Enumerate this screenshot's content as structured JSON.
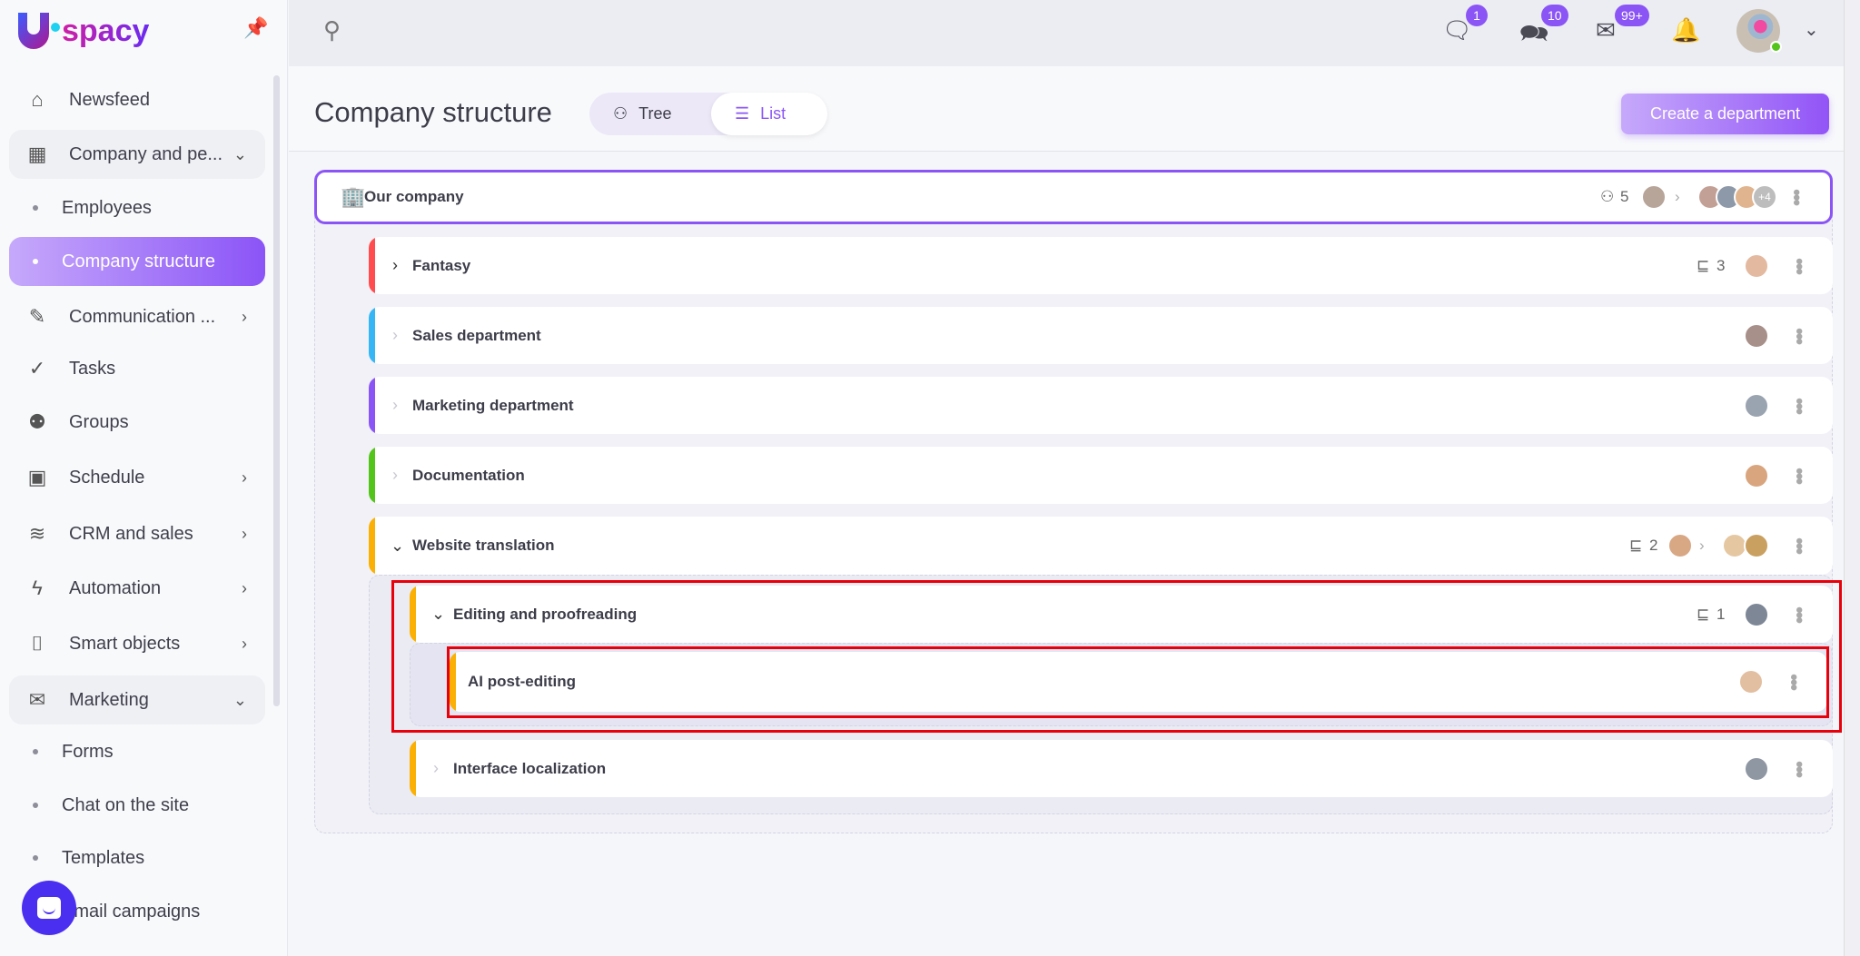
{
  "sidebar": {
    "logo": "spacy",
    "items": [
      {
        "label": "Newsfeed",
        "icon": "home-icon"
      },
      {
        "label": "Company and pe...",
        "icon": "building-icon",
        "expanded": true
      },
      {
        "label": "Employees",
        "sub": true
      },
      {
        "label": "Company structure",
        "sub": true,
        "active": true
      },
      {
        "label": "Communication ...",
        "icon": "communication-icon",
        "chevron": true
      },
      {
        "label": "Tasks",
        "icon": "tasks-icon"
      },
      {
        "label": "Groups",
        "icon": "groups-icon"
      },
      {
        "label": "Schedule",
        "icon": "calendar-icon",
        "chevron": true
      },
      {
        "label": "CRM and sales",
        "icon": "crm-icon",
        "chevron": true
      },
      {
        "label": "Automation",
        "icon": "lightning-icon",
        "chevron": true
      },
      {
        "label": "Smart objects",
        "icon": "smart-objects-icon",
        "chevron": true
      },
      {
        "label": "Marketing",
        "icon": "marketing-icon",
        "expanded": true
      },
      {
        "label": "Forms",
        "sub": true
      },
      {
        "label": "Chat on the site",
        "sub": true
      },
      {
        "label": "Templates",
        "sub": true
      },
      {
        "label": "Email campaigns",
        "sub": true
      }
    ]
  },
  "header": {
    "badges": {
      "chat": "1",
      "messages": "10",
      "mail": "99+"
    }
  },
  "page": {
    "title": "Company structure",
    "view_tree": "Tree",
    "view_list": "List",
    "create_button": "Create a department"
  },
  "structure": {
    "root": {
      "name": "Our company",
      "count": "5",
      "more": "+4"
    },
    "rows": [
      {
        "name": "Fantasy",
        "color": "#ff4d4f",
        "state": "collapsed",
        "count": "3"
      },
      {
        "name": "Sales department",
        "color": "#36b6f4",
        "state": "leaf"
      },
      {
        "name": "Marketing department",
        "color": "#8b55f6",
        "state": "leaf"
      },
      {
        "name": "Documentation",
        "color": "#52c41a",
        "state": "leaf"
      },
      {
        "name": "Website translation",
        "color": "#fab005",
        "state": "expanded",
        "count": "2"
      },
      {
        "name": "Editing and proofreading",
        "color": "#fab005",
        "state": "expanded",
        "count": "1"
      },
      {
        "name": "AI post-editing",
        "color": "#fab005",
        "state": "none"
      },
      {
        "name": "Interface localization",
        "color": "#fab005",
        "state": "leaf"
      }
    ]
  }
}
